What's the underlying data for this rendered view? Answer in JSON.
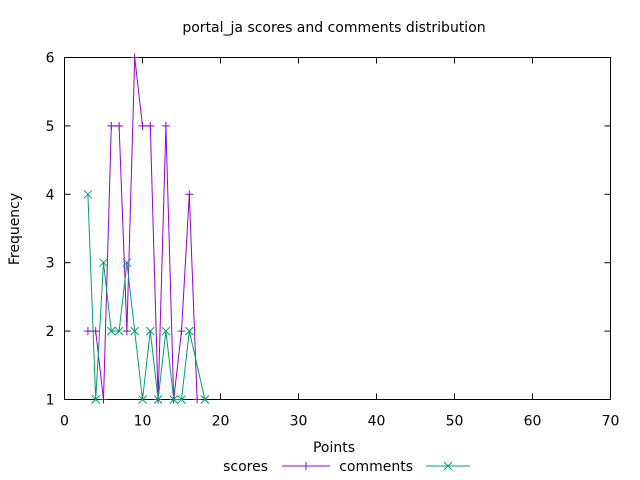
{
  "chart_data": {
    "type": "line",
    "title": "portal_ja scores and comments distribution",
    "xlabel": "Points",
    "ylabel": "Frequency",
    "xlim": [
      0,
      70
    ],
    "ylim": [
      1,
      6
    ],
    "xticks": [
      0,
      10,
      20,
      30,
      40,
      50,
      60,
      70
    ],
    "yticks": [
      1,
      2,
      3,
      4,
      5,
      6
    ],
    "grid": false,
    "legend_position": "bottom",
    "series": [
      {
        "name": "scores",
        "color": "#9400d3",
        "marker": "plus",
        "points": [
          [
            3,
            2
          ],
          [
            4,
            2
          ],
          [
            5,
            1
          ],
          [
            6,
            5
          ],
          [
            7,
            5
          ],
          [
            8,
            2
          ],
          [
            9,
            6
          ],
          [
            10,
            5
          ],
          [
            11,
            5
          ],
          [
            12,
            1
          ],
          [
            13,
            5
          ],
          [
            14,
            1
          ],
          [
            15,
            2
          ],
          [
            16,
            4
          ],
          [
            17,
            1
          ]
        ]
      },
      {
        "name": "comments",
        "color": "#009e73",
        "marker": "cross",
        "points": [
          [
            3,
            4
          ],
          [
            4,
            1
          ],
          [
            5,
            3
          ],
          [
            6,
            2
          ],
          [
            7,
            2
          ],
          [
            8,
            3
          ],
          [
            9,
            2
          ],
          [
            10,
            1
          ],
          [
            11,
            2
          ],
          [
            12,
            1
          ],
          [
            13,
            2
          ],
          [
            14,
            1
          ],
          [
            15,
            1
          ],
          [
            16,
            2
          ],
          [
            18,
            1
          ]
        ]
      }
    ]
  }
}
